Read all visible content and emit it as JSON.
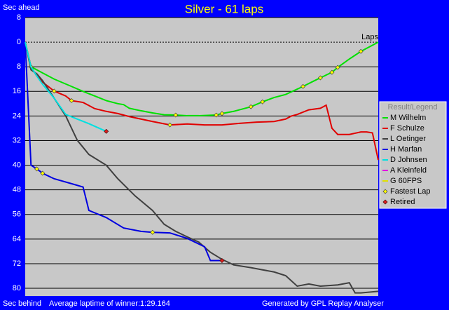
{
  "chart_data": {
    "type": "line",
    "title": "Silver - 61 laps",
    "y_label_top": "Sec ahead",
    "y_label_bottom": "Sec behind",
    "x_label": "Laps",
    "footer_center": "Average laptime of winner:1:29.164",
    "footer_right": "Generated by GPL Replay Analyser",
    "legend_title": "Result/Legend",
    "fastest_lap_label": "Fastest Lap",
    "retired_label": "Retired",
    "fastest_lap_color": "#ffff00",
    "retired_color": "#e02020",
    "xlim": [
      0,
      61
    ],
    "ylim": [
      -8,
      82.5
    ],
    "yticks": [
      {
        "value": -8,
        "label": "8"
      },
      0,
      8,
      16,
      24,
      32,
      40,
      48,
      56,
      64,
      72,
      80
    ],
    "grid": true,
    "legend": "right",
    "series": [
      {
        "name": "M Wilhelm",
        "color": "#00e000",
        "x": [
          0,
          1,
          3,
          5,
          8,
          10,
          12,
          14,
          16,
          17,
          18,
          20,
          22,
          24,
          26,
          28,
          30,
          33,
          34,
          36,
          39,
          41,
          43,
          45,
          48,
          50,
          51,
          53,
          54,
          56,
          58,
          60,
          61
        ],
        "values": [
          0,
          8,
          10,
          12,
          14.4,
          16,
          17.5,
          19,
          20,
          20.3,
          21.5,
          22.3,
          23,
          23.6,
          23.7,
          23.9,
          23.9,
          23.7,
          23.2,
          22.5,
          21,
          19.4,
          18,
          17,
          14.4,
          12.5,
          11.6,
          9.8,
          8.2,
          5.5,
          3,
          1,
          0
        ],
        "fastest_laps": [
          1,
          26,
          33,
          34,
          39,
          41,
          48,
          51,
          53,
          54,
          58
        ],
        "retired": false
      },
      {
        "name": "F Schulze",
        "color": "#e00000",
        "x": [
          0,
          1,
          2,
          3,
          5,
          7,
          8,
          10,
          12,
          14,
          16,
          18,
          20,
          22,
          25,
          28,
          31,
          34,
          37,
          40,
          43,
          45,
          46,
          47,
          49,
          51,
          52,
          53,
          54,
          56,
          58,
          59,
          60,
          61
        ],
        "values": [
          0,
          8,
          11,
          13,
          15.9,
          17.5,
          19,
          19.6,
          21.6,
          22.5,
          23.2,
          24.2,
          25,
          25.8,
          26.9,
          26.6,
          26.9,
          26.9,
          26.4,
          26,
          25.8,
          25,
          24,
          23.5,
          22,
          21.5,
          20.5,
          28,
          30,
          30,
          29.2,
          29.2,
          29.5,
          38.3
        ],
        "fastest_laps": [
          5,
          8,
          25
        ],
        "retired": false
      },
      {
        "name": "L Oetinger",
        "color": "#404040",
        "x": [
          0,
          1,
          2,
          3,
          5,
          7,
          9,
          11,
          14,
          16,
          19,
          22,
          24,
          26,
          28,
          30,
          32,
          34,
          36,
          39,
          43,
          45,
          47,
          49,
          51,
          54,
          56,
          57,
          58,
          61
        ],
        "values": [
          0,
          9,
          10.3,
          12.5,
          18.2,
          24,
          31.9,
          36.5,
          40,
          44.4,
          50,
          54.7,
          59.2,
          61.5,
          63.3,
          65,
          68.3,
          70.6,
          72.4,
          73.3,
          74.7,
          75.9,
          79.3,
          78.6,
          79.3,
          78.9,
          78.2,
          81.5,
          81.5,
          81
        ],
        "fastest_laps": [],
        "retired": false
      },
      {
        "name": "H Marfan",
        "color": "#0000e0",
        "x": [
          0,
          1,
          2,
          3,
          5,
          8,
          10,
          11,
          14,
          17,
          20,
          22,
          25,
          28,
          31,
          32,
          34
        ],
        "values": [
          0,
          40,
          41.2,
          42.6,
          44.4,
          46,
          47.1,
          54.7,
          57,
          60.4,
          61.5,
          61.8,
          62,
          63.8,
          66.5,
          71,
          71
        ],
        "fastest_laps": [
          2,
          3,
          22
        ],
        "retired": true
      },
      {
        "name": "D Johnsen",
        "color": "#00e0e0",
        "x": [
          0,
          1,
          2,
          3,
          5,
          7,
          9,
          11,
          14
        ],
        "values": [
          0,
          8,
          11,
          13.7,
          18.2,
          23.5,
          25,
          26.5,
          29
        ],
        "fastest_laps": [],
        "retired": true
      },
      {
        "name": "A Kleinfeld",
        "color": "#e000e0",
        "x": [],
        "values": [],
        "fastest_laps": [],
        "retired": false
      },
      {
        "name": "G 60FPS",
        "color": "#e0e000",
        "x": [],
        "values": [],
        "fastest_laps": [],
        "retired": false
      }
    ]
  }
}
